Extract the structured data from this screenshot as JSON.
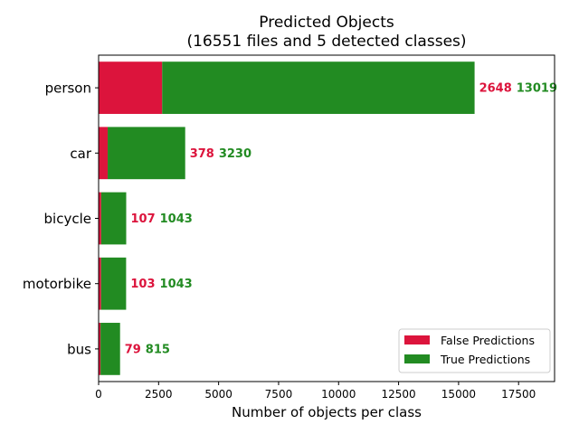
{
  "chart_data": {
    "type": "bar",
    "orientation": "horizontal",
    "stacked": true,
    "title": "Predicted Objects",
    "subtitle": "(16551 files and 5 detected classes)",
    "xlabel": "Number of objects per class",
    "ylabel": "",
    "categories": [
      "person",
      "car",
      "bicycle",
      "motorbike",
      "bus"
    ],
    "series": [
      {
        "name": "False Predictions",
        "color": "#dc143c",
        "values": [
          2648,
          378,
          107,
          103,
          79
        ]
      },
      {
        "name": "True Predictions",
        "color": "#228b22",
        "values": [
          13019,
          3230,
          1043,
          1043,
          815
        ]
      }
    ],
    "xlim": [
      0,
      19000
    ],
    "xticks": [
      0,
      2500,
      5000,
      7500,
      10000,
      12500,
      15000,
      17500
    ],
    "xtick_labels": [
      "0",
      "2500",
      "5000",
      "7500",
      "10000",
      "12500",
      "15000",
      "17500"
    ],
    "grid": false,
    "legend_position": "lower-right"
  }
}
